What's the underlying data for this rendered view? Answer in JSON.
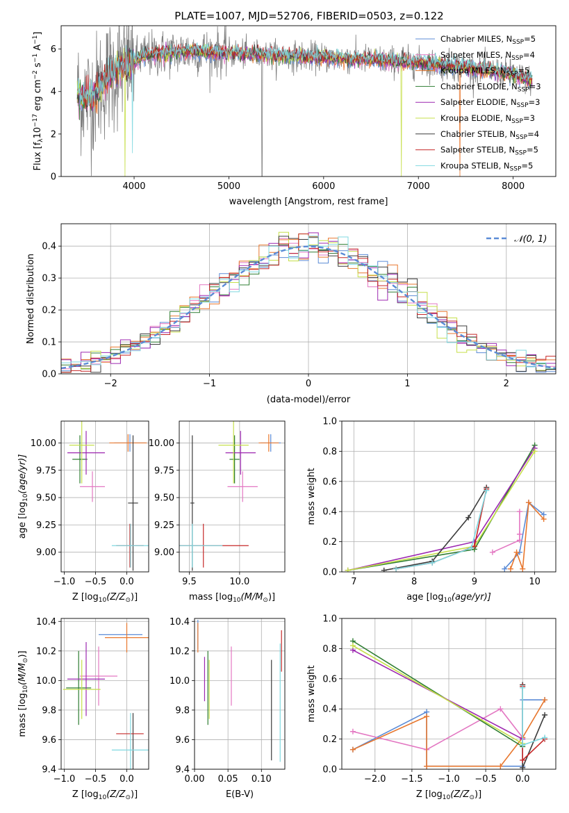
{
  "figure": {
    "title": "PLATE=1007, MJD=52706, FIBERID=0503, z=0.122"
  },
  "colors": {
    "Chabrier MILES": "#5b8bd6",
    "Salpeter MILES": "#e377c2",
    "Kroupa MILES": "#e8772e",
    "Chabrier ELODIE": "#2e7d32",
    "Salpeter ELODIE": "#9c27b0",
    "Kroupa ELODIE": "#c6df4a",
    "Chabrier STELIB": "#3c3c3c",
    "Salpeter STELIB": "#c62828",
    "Kroupa STELIB": "#7fd8e0",
    "data": "#7f7f7f"
  },
  "legend_spectrum": [
    {
      "model": "Chabrier MILES",
      "pre": "Chabrier MILES, N",
      "sub": "SSP",
      "post": "=5"
    },
    {
      "model": "Salpeter MILES",
      "pre": "Salpeter MILES, N",
      "sub": "SSP",
      "post": "=4"
    },
    {
      "model": "Kroupa MILES",
      "pre": "Kroupa MILES, N",
      "sub": "SSP",
      "post": "=5"
    },
    {
      "model": "Chabrier ELODIE",
      "pre": "Chabrier ELODIE, N",
      "sub": "SSP",
      "post": "=3"
    },
    {
      "model": "Salpeter ELODIE",
      "pre": "Salpeter ELODIE, N",
      "sub": "SSP",
      "post": "=3"
    },
    {
      "model": "Kroupa ELODIE",
      "pre": "Kroupa ELODIE, N",
      "sub": "SSP",
      "post": "=3"
    },
    {
      "model": "Chabrier STELIB",
      "pre": "Chabrier STELIB, N",
      "sub": "SSP",
      "post": "=4"
    },
    {
      "model": "Salpeter STELIB",
      "pre": "Salpeter STELIB, N",
      "sub": "SSP",
      "post": "=5"
    },
    {
      "model": "Kroupa STELIB",
      "pre": "Kroupa STELIB, N",
      "sub": "SSP",
      "post": "=5"
    }
  ],
  "legend_hist": {
    "label": "𝒩(0, 1)",
    "color": "#5b8bd6"
  },
  "chart_data": [
    {
      "id": "spectrum",
      "type": "line",
      "xlabel": "wavelength [Angstrom, rest frame]",
      "ylabel_parts": [
        "Flux [f",
        "λ",
        "10",
        "−17",
        " erg cm",
        "−2",
        " s",
        "−1",
        " A",
        "−1",
        "]"
      ],
      "xlim": [
        3230,
        8450
      ],
      "ylim": [
        0,
        7.1
      ],
      "xticks": [
        4000,
        5000,
        6000,
        7000,
        8000
      ],
      "yticks": [
        0,
        2,
        4,
        6
      ],
      "continuum": [
        [
          3400,
          3.9
        ],
        [
          3550,
          3.7
        ],
        [
          3700,
          4.6
        ],
        [
          3850,
          5.1
        ],
        [
          4000,
          5.4
        ],
        [
          4100,
          5.7
        ],
        [
          4300,
          5.8
        ],
        [
          4600,
          5.9
        ],
        [
          5000,
          5.8
        ],
        [
          5500,
          5.7
        ],
        [
          6000,
          5.6
        ],
        [
          6500,
          5.5
        ],
        [
          7000,
          5.35
        ],
        [
          7500,
          5.15
        ],
        [
          8000,
          4.8
        ],
        [
          8200,
          4.5
        ]
      ],
      "model_range": [
        3400,
        8200
      ],
      "data_range": [
        3400,
        8200
      ],
      "drops": [
        {
          "model": "data",
          "x": 5350,
          "to": 0
        },
        {
          "model": "Kroupa ELODIE",
          "x": 3905,
          "to": 0
        },
        {
          "model": "Kroupa ELODIE",
          "x": 6820,
          "to": 0
        },
        {
          "model": "Kroupa MILES",
          "x": 7440,
          "to": 0
        },
        {
          "model": "Kroupa STELIB",
          "x": 3980,
          "to": 1.1
        }
      ]
    },
    {
      "id": "residuals",
      "type": "histogram",
      "xlabel": "(data-model)/error",
      "ylabel": "Normed distribution",
      "xlim": [
        -2.5,
        2.5
      ],
      "ylim": [
        0,
        0.47
      ],
      "xticks": [
        -2,
        -1,
        0,
        1,
        2
      ],
      "yticks": [
        0,
        0.1,
        0.2,
        0.3,
        0.4
      ],
      "bin_width": 0.1,
      "series": [
        "Chabrier MILES",
        "Salpeter MILES",
        "Kroupa MILES",
        "Chabrier ELODIE",
        "Salpeter ELODIE",
        "Kroupa ELODIE",
        "Chabrier STELIB",
        "Salpeter STELIB",
        "Kroupa STELIB"
      ],
      "gaussian": {
        "mu": 0,
        "sigma": 1
      }
    },
    {
      "id": "age_vs_Z",
      "type": "scatter",
      "xlabel_parts": [
        "Z [log",
        "10",
        "(Z/Z",
        "⊙",
        ")]"
      ],
      "ylabel_parts": [
        "age  [log",
        "10",
        "(age/yr)]"
      ],
      "xlim": [
        -1.05,
        0.35
      ],
      "ylim": [
        8.82,
        10.2
      ],
      "xticks": [
        -1.0,
        -0.5,
        0.0
      ],
      "yticks": [
        9.0,
        9.25,
        9.5,
        9.75,
        10.0
      ],
      "points": [
        {
          "model": "Chabrier MILES",
          "x": 0.05,
          "y": 10.0,
          "ex": 0.25,
          "ey": 0.08
        },
        {
          "model": "Salpeter MILES",
          "x": -0.55,
          "y": 9.6,
          "ex": 0.2,
          "ey": 0.14
        },
        {
          "model": "Kroupa MILES",
          "x": 0.02,
          "y": 10.0,
          "ex": 0.3,
          "ey": 0.08
        },
        {
          "model": "Chabrier ELODIE",
          "x": -0.75,
          "y": 9.85,
          "ex": 0.12,
          "ey": 0.22
        },
        {
          "model": "Salpeter ELODIE",
          "x": -0.65,
          "y": 9.91,
          "ex": 0.3,
          "ey": 0.2
        },
        {
          "model": "Kroupa ELODIE",
          "x": -0.72,
          "y": 9.98,
          "ex": 0.2,
          "ey": 0.35
        },
        {
          "model": "Chabrier STELIB",
          "x": 0.1,
          "y": 9.45,
          "ex": 0.08,
          "ey": 0.62
        },
        {
          "model": "Salpeter STELIB",
          "x": 0.05,
          "y": 9.06,
          "ex": 0.22,
          "ey": 0.2
        },
        {
          "model": "Kroupa STELIB",
          "x": 0.06,
          "y": 9.06,
          "ex": 0.3,
          "ey": 0.2
        }
      ]
    },
    {
      "id": "age_vs_mass",
      "type": "scatter",
      "xlabel_parts": [
        "mass [log",
        "10",
        "(M/M",
        "⊙",
        ")]"
      ],
      "ylabel_parts": [],
      "xlim": [
        9.4,
        10.45
      ],
      "ylim": [
        8.82,
        10.2
      ],
      "xticks": [
        9.5,
        10.0
      ],
      "yticks": [
        9.0,
        9.25,
        9.5,
        9.75,
        10.0
      ],
      "points": [
        {
          "model": "Chabrier MILES",
          "x": 10.31,
          "y": 10.0,
          "ex": 0.1,
          "ey": 0.08
        },
        {
          "model": "Salpeter MILES",
          "x": 10.03,
          "y": 9.6,
          "ex": 0.15,
          "ey": 0.14
        },
        {
          "model": "Kroupa MILES",
          "x": 10.29,
          "y": 10.0,
          "ex": 0.1,
          "ey": 0.08
        },
        {
          "model": "Chabrier ELODIE",
          "x": 9.95,
          "y": 9.85,
          "ex": 0.05,
          "ey": 0.22
        },
        {
          "model": "Salpeter ELODIE",
          "x": 10.01,
          "y": 9.91,
          "ex": 0.15,
          "ey": 0.2
        },
        {
          "model": "Kroupa ELODIE",
          "x": 9.94,
          "y": 9.98,
          "ex": 0.15,
          "ey": 0.35
        },
        {
          "model": "Chabrier STELIB",
          "x": 9.53,
          "y": 9.45,
          "ex": 0.02,
          "ey": 0.62
        },
        {
          "model": "Salpeter STELIB",
          "x": 9.64,
          "y": 9.06,
          "ex": 0.45,
          "ey": 0.2
        },
        {
          "model": "Kroupa STELIB",
          "x": 9.53,
          "y": 9.06,
          "ex": 0.3,
          "ey": 0.2
        }
      ]
    },
    {
      "id": "massweight_vs_age",
      "type": "line",
      "xlabel_parts": [
        "age  [log",
        "10",
        "(age/yr)]"
      ],
      "ylabel": "mass weight",
      "xlim": [
        6.8,
        10.35
      ],
      "ylim": [
        0,
        1.0
      ],
      "xticks": [
        7,
        8,
        9,
        10
      ],
      "yticks": [
        0.0,
        0.2,
        0.4,
        0.6,
        0.8,
        1.0
      ],
      "series": [
        {
          "model": "Chabrier MILES",
          "x": [
            9.5,
            9.75,
            9.9,
            10.15
          ],
          "y": [
            0.02,
            0.13,
            0.46,
            0.38
          ]
        },
        {
          "model": "Salpeter MILES",
          "x": [
            9.3,
            9.75,
            9.75,
            9.75
          ],
          "y": [
            0.13,
            0.21,
            0.25,
            0.4
          ]
        },
        {
          "model": "Kroupa MILES",
          "x": [
            9.6,
            9.7,
            9.8,
            9.9,
            10.15
          ],
          "y": [
            0.02,
            0.13,
            0.02,
            0.46,
            0.35
          ]
        },
        {
          "model": "Chabrier ELODIE",
          "x": [
            6.9,
            9.0,
            10.0
          ],
          "y": [
            0.01,
            0.15,
            0.84
          ]
        },
        {
          "model": "Salpeter ELODIE",
          "x": [
            6.9,
            9.0,
            10.0
          ],
          "y": [
            0.01,
            0.2,
            0.82
          ]
        },
        {
          "model": "Kroupa ELODIE",
          "x": [
            6.9,
            9.0,
            10.0
          ],
          "y": [
            0.01,
            0.17,
            0.8
          ]
        },
        {
          "model": "Chabrier STELIB",
          "x": [
            7.5,
            8.3,
            8.9,
            9.2
          ],
          "y": [
            0.01,
            0.07,
            0.36,
            0.56
          ]
        },
        {
          "model": "Salpeter STELIB",
          "x": [
            7.7,
            8.3,
            9.0,
            9.2
          ],
          "y": [
            0.02,
            0.06,
            0.17,
            0.55
          ]
        },
        {
          "model": "Kroupa STELIB",
          "x": [
            7.7,
            8.3,
            8.95,
            9.2
          ],
          "y": [
            0.02,
            0.06,
            0.16,
            0.54
          ]
        }
      ]
    },
    {
      "id": "mass_vs_Z",
      "type": "scatter",
      "xlabel_parts": [
        "Z [log",
        "10",
        "(Z/Z",
        "⊙",
        ")]"
      ],
      "ylabel_parts": [
        "mass [log",
        "10",
        "(M/M",
        "⊙",
        ")]"
      ],
      "xlim": [
        -1.05,
        0.35
      ],
      "ylim": [
        9.4,
        10.42
      ],
      "xticks": [
        -1.0,
        -0.5,
        0.0
      ],
      "yticks": [
        9.4,
        9.6,
        9.8,
        10.0,
        10.2,
        10.4
      ],
      "points": [
        {
          "model": "Chabrier MILES",
          "x": -0.1,
          "y": 10.31,
          "ex": 0.35,
          "ey": 0.0
        },
        {
          "model": "Salpeter MILES",
          "x": -0.45,
          "y": 10.03,
          "ex": 0.3,
          "ey": 0.2
        },
        {
          "model": "Kroupa MILES",
          "x": 0.0,
          "y": 10.29,
          "ex": 0.35,
          "ey": 0.1
        },
        {
          "model": "Chabrier ELODIE",
          "x": -0.77,
          "y": 9.95,
          "ex": 0.2,
          "ey": 0.25
        },
        {
          "model": "Salpeter ELODIE",
          "x": -0.65,
          "y": 10.01,
          "ex": 0.3,
          "ey": 0.25
        },
        {
          "model": "Kroupa ELODIE",
          "x": -0.72,
          "y": 9.94,
          "ex": 0.3,
          "ey": 0.2
        },
        {
          "model": "Chabrier STELIB",
          "x": 0.1,
          "y": 9.53,
          "ex": 0.0,
          "ey": 0.25
        },
        {
          "model": "Salpeter STELIB",
          "x": 0.05,
          "y": 9.64,
          "ex": 0.22,
          "ey": 0.0
        },
        {
          "model": "Kroupa STELIB",
          "x": 0.06,
          "y": 9.53,
          "ex": 0.3,
          "ey": 0.25
        }
      ]
    },
    {
      "id": "mass_vs_ebv",
      "type": "scatter",
      "xlabel": "E(B-V)",
      "ylabel_parts": [],
      "xlim": [
        0.0,
        0.135
      ],
      "ylim": [
        9.4,
        10.42
      ],
      "xticks": [
        0.0,
        0.05,
        0.1
      ],
      "yticks": [
        9.4,
        9.6,
        9.8,
        10.0,
        10.2,
        10.4
      ],
      "points": [
        {
          "model": "Chabrier MILES",
          "x": 0.005,
          "y": 10.31,
          "ex": 0,
          "ey": 0.1
        },
        {
          "model": "Salpeter MILES",
          "x": 0.055,
          "y": 10.03,
          "ex": 0,
          "ey": 0.2
        },
        {
          "model": "Kroupa MILES",
          "x": 0.005,
          "y": 10.29,
          "ex": 0,
          "ey": 0.1
        },
        {
          "model": "Chabrier ELODIE",
          "x": 0.02,
          "y": 9.95,
          "ex": 0,
          "ey": 0.25
        },
        {
          "model": "Salpeter ELODIE",
          "x": 0.015,
          "y": 10.01,
          "ex": 0,
          "ey": 0.15
        },
        {
          "model": "Kroupa ELODIE",
          "x": 0.022,
          "y": 9.94,
          "ex": 0,
          "ey": 0.2
        },
        {
          "model": "Chabrier STELIB",
          "x": 0.115,
          "y": 9.8,
          "ex": 0,
          "ey": 0.34
        },
        {
          "model": "Salpeter STELIB",
          "x": 0.13,
          "y": 10.2,
          "ex": 0,
          "ey": 0.14
        },
        {
          "model": "Kroupa STELIB",
          "x": 0.128,
          "y": 9.85,
          "ex": 0,
          "ey": 0.4
        }
      ]
    },
    {
      "id": "massweight_vs_Z",
      "type": "line",
      "xlabel_parts": [
        "Z [log",
        "10",
        "(Z/Z",
        "⊙",
        ")]"
      ],
      "ylabel": "mass weight",
      "xlim": [
        -2.45,
        0.45
      ],
      "ylim": [
        0,
        1.0
      ],
      "xticks": [
        -2.0,
        -1.5,
        -1.0,
        -0.5,
        0.0
      ],
      "yticks": [
        0.0,
        0.2,
        0.4,
        0.6,
        0.8,
        1.0
      ],
      "series": [
        {
          "model": "Chabrier MILES",
          "x": [
            -2.3,
            -1.3,
            -1.3,
            0.0,
            0.0,
            0.3
          ],
          "y": [
            0.13,
            0.38,
            0.02,
            0.02,
            0.46,
            0.46
          ]
        },
        {
          "model": "Salpeter MILES",
          "x": [
            -2.3,
            -1.3,
            -0.3,
            0.0
          ],
          "y": [
            0.25,
            0.13,
            0.4,
            0.21
          ]
        },
        {
          "model": "Kroupa MILES",
          "x": [
            -2.3,
            -1.3,
            -1.3,
            -0.3,
            0.0,
            0.3
          ],
          "y": [
            0.13,
            0.35,
            0.02,
            0.02,
            0.21,
            0.46
          ]
        },
        {
          "model": "Chabrier ELODIE",
          "x": [
            -2.3,
            0.0
          ],
          "y": [
            0.85,
            0.15
          ]
        },
        {
          "model": "Salpeter ELODIE",
          "x": [
            -2.3,
            0.0
          ],
          "y": [
            0.79,
            0.2
          ]
        },
        {
          "model": "Kroupa ELODIE",
          "x": [
            -2.3,
            0.0
          ],
          "y": [
            0.82,
            0.17
          ]
        },
        {
          "model": "Chabrier STELIB",
          "x": [
            0.0,
            0.0,
            0.3
          ],
          "y": [
            0.56,
            0.01,
            0.36
          ]
        },
        {
          "model": "Salpeter STELIB",
          "x": [
            0.0,
            0.0,
            0.3
          ],
          "y": [
            0.55,
            0.06,
            0.2
          ]
        },
        {
          "model": "Kroupa STELIB",
          "x": [
            0.0,
            0.0,
            0.3
          ],
          "y": [
            0.54,
            0.16,
            0.21
          ]
        }
      ]
    }
  ]
}
